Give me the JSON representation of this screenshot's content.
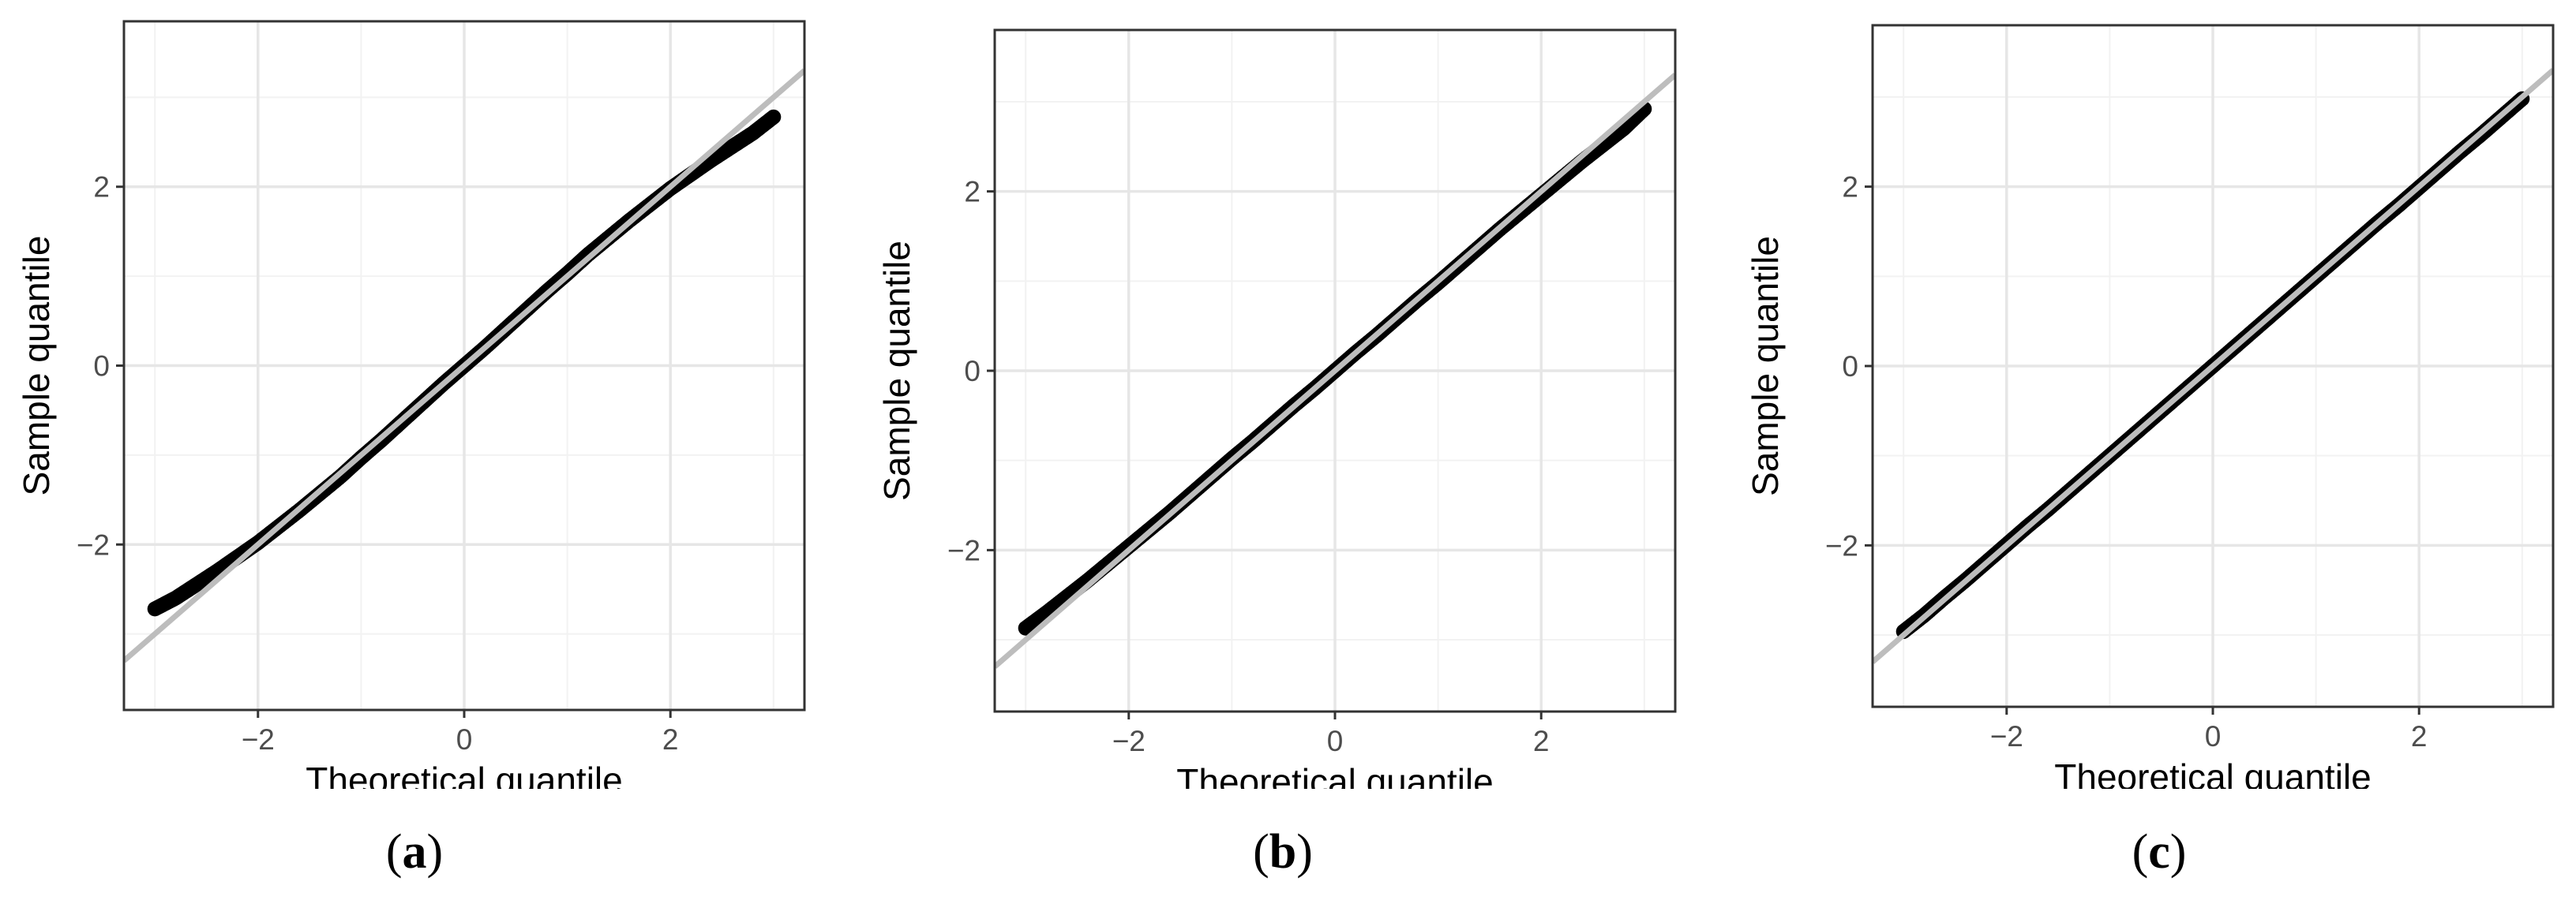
{
  "chart_data": [
    {
      "type": "scatter",
      "panel_label": "a",
      "xlabel": "Theoretical quantile",
      "ylabel": "Sample quantile",
      "xlim": [
        -3.3,
        3.3
      ],
      "ylim": [
        -3.85,
        3.85
      ],
      "xticks": [
        -2,
        0,
        2
      ],
      "xtick_labels": [
        "−2",
        "0",
        "2"
      ],
      "yticks": [
        -2,
        0,
        2
      ],
      "ytick_labels": [
        "−2",
        "0",
        "2"
      ],
      "grid": true,
      "reference_line": {
        "slope": 1,
        "intercept": 0,
        "color": "#bdbdbd"
      },
      "points": {
        "x": [
          -3.0,
          -2.8,
          -2.6,
          -2.4,
          -2.2,
          -2.0,
          -1.8,
          -1.6,
          -1.4,
          -1.2,
          -1.0,
          -0.8,
          -0.6,
          -0.4,
          -0.2,
          0.0,
          0.2,
          0.4,
          0.6,
          0.8,
          1.0,
          1.2,
          1.4,
          1.6,
          1.8,
          2.0,
          2.2,
          2.4,
          2.6,
          2.8,
          3.0
        ],
        "y": [
          -2.72,
          -2.6,
          -2.45,
          -2.3,
          -2.14,
          -1.98,
          -1.8,
          -1.62,
          -1.43,
          -1.24,
          -1.03,
          -0.83,
          -0.62,
          -0.41,
          -0.2,
          0.0,
          0.2,
          0.41,
          0.62,
          0.83,
          1.03,
          1.24,
          1.43,
          1.62,
          1.8,
          1.98,
          2.14,
          2.3,
          2.45,
          2.6,
          2.78
        ],
        "color": "#000000"
      }
    },
    {
      "type": "scatter",
      "panel_label": "b",
      "xlabel": "Theoretical quantile",
      "ylabel": "Sample quantile",
      "xlim": [
        -3.3,
        3.3
      ],
      "ylim": [
        -3.8,
        3.8
      ],
      "xticks": [
        -2,
        0,
        2
      ],
      "xtick_labels": [
        "−2",
        "0",
        "2"
      ],
      "yticks": [
        -2,
        0,
        2
      ],
      "ytick_labels": [
        "−2",
        "0",
        "2"
      ],
      "grid": true,
      "reference_line": {
        "slope": 1,
        "intercept": 0,
        "color": "#bdbdbd"
      },
      "points": {
        "x": [
          -3.0,
          -2.8,
          -2.6,
          -2.4,
          -2.2,
          -2.0,
          -1.8,
          -1.6,
          -1.4,
          -1.2,
          -1.0,
          -0.8,
          -0.6,
          -0.4,
          -0.2,
          0.0,
          0.2,
          0.4,
          0.6,
          0.8,
          1.0,
          1.2,
          1.4,
          1.6,
          1.8,
          2.0,
          2.2,
          2.4,
          2.6,
          2.8,
          3.0
        ],
        "y": [
          -2.87,
          -2.7,
          -2.52,
          -2.34,
          -2.15,
          -1.96,
          -1.77,
          -1.58,
          -1.38,
          -1.18,
          -0.98,
          -0.79,
          -0.59,
          -0.39,
          -0.2,
          0.0,
          0.2,
          0.39,
          0.59,
          0.79,
          0.98,
          1.18,
          1.38,
          1.58,
          1.77,
          1.96,
          2.15,
          2.34,
          2.52,
          2.7,
          2.92
        ],
        "color": "#000000"
      }
    },
    {
      "type": "scatter",
      "panel_label": "c",
      "xlabel": "Theoretical quantile",
      "ylabel": "Sample quantile",
      "xlim": [
        -3.3,
        3.3
      ],
      "ylim": [
        -3.8,
        3.8
      ],
      "xticks": [
        -2,
        0,
        2
      ],
      "xtick_labels": [
        "−2",
        "0",
        "2"
      ],
      "yticks": [
        -2,
        0,
        2
      ],
      "ytick_labels": [
        "−2",
        "0",
        "2"
      ],
      "grid": true,
      "reference_line": {
        "slope": 1,
        "intercept": 0,
        "color": "#bdbdbd"
      },
      "points": {
        "x": [
          -3.0,
          -2.8,
          -2.6,
          -2.4,
          -2.2,
          -2.0,
          -1.8,
          -1.6,
          -1.4,
          -1.2,
          -1.0,
          -0.8,
          -0.6,
          -0.4,
          -0.2,
          0.0,
          0.2,
          0.4,
          0.6,
          0.8,
          1.0,
          1.2,
          1.4,
          1.6,
          1.8,
          2.0,
          2.2,
          2.4,
          2.6,
          2.8,
          3.0
        ],
        "y": [
          -2.96,
          -2.78,
          -2.58,
          -2.39,
          -2.19,
          -1.99,
          -1.79,
          -1.6,
          -1.4,
          -1.2,
          -1.0,
          -0.8,
          -0.6,
          -0.4,
          -0.2,
          0.0,
          0.2,
          0.4,
          0.6,
          0.8,
          1.0,
          1.2,
          1.4,
          1.6,
          1.79,
          1.99,
          2.19,
          2.39,
          2.58,
          2.78,
          2.98
        ],
        "color": "#000000"
      }
    }
  ],
  "captions": [
    {
      "open": "(",
      "letter": "a",
      "close": ")"
    },
    {
      "open": "(",
      "letter": "b",
      "close": ")"
    },
    {
      "open": "(",
      "letter": "c",
      "close": ")"
    }
  ]
}
